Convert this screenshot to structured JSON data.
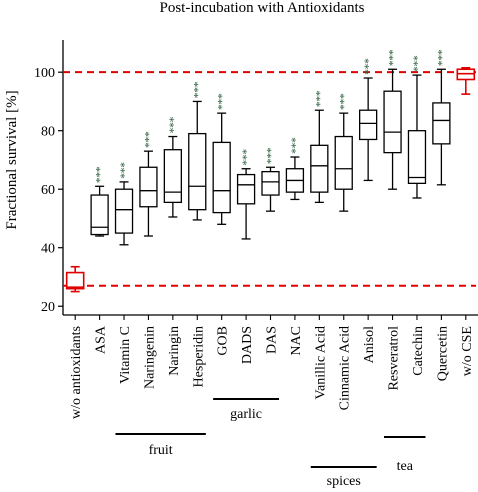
{
  "chart_data": {
    "type": "boxplot",
    "title": "Post-incubation with Antioxidants",
    "ylabel": "Fractional survival [%]",
    "xlabel": "",
    "ylim": [
      17,
      111
    ],
    "yticks": [
      20,
      40,
      60,
      80,
      100
    ],
    "grid": false,
    "reference_lines": [
      {
        "y": 100,
        "color": "#e00000",
        "style": "dashed"
      },
      {
        "y": 27,
        "color": "#e00000",
        "style": "dashed"
      }
    ],
    "categories": [
      "w/o antioxidants",
      "ASA",
      "Vitamin C",
      "Naringenin",
      "Naringin",
      "Hesperidin",
      "GOB",
      "DADS",
      "DAS",
      "NAC",
      "Vanillic Acid",
      "Cinnamic Acid",
      "Anisol",
      "Resveratrol",
      "Catechin",
      "Quercetin",
      "w/o CSE"
    ],
    "boxes": [
      {
        "min": 25,
        "q1": 26,
        "median": 26.5,
        "q3": 31.5,
        "max": 33.5,
        "color": "#e00000",
        "significance": ""
      },
      {
        "min": 44,
        "q1": 44.5,
        "median": 47,
        "q3": 58,
        "max": 61,
        "color": "#000000",
        "significance": "***"
      },
      {
        "min": 41,
        "q1": 45,
        "median": 53,
        "q3": 60,
        "max": 62.5,
        "color": "#000000",
        "significance": "***"
      },
      {
        "min": 44,
        "q1": 54,
        "median": 59.5,
        "q3": 67.5,
        "max": 73,
        "color": "#000000",
        "significance": "***"
      },
      {
        "min": 50.5,
        "q1": 55.5,
        "median": 59,
        "q3": 73.5,
        "max": 78,
        "color": "#000000",
        "significance": "***"
      },
      {
        "min": 49.5,
        "q1": 53,
        "median": 61,
        "q3": 79,
        "max": 90,
        "color": "#000000",
        "significance": "***"
      },
      {
        "min": 48,
        "q1": 52,
        "median": 59.5,
        "q3": 76,
        "max": 86,
        "color": "#000000",
        "significance": "***"
      },
      {
        "min": 43,
        "q1": 55,
        "median": 61.5,
        "q3": 65,
        "max": 67,
        "color": "#000000",
        "significance": "***"
      },
      {
        "min": 52.5,
        "q1": 58,
        "median": 62.5,
        "q3": 66,
        "max": 67.5,
        "color": "#000000",
        "significance": "***"
      },
      {
        "min": 56.5,
        "q1": 59,
        "median": 63,
        "q3": 67,
        "max": 71,
        "color": "#000000",
        "significance": "***"
      },
      {
        "min": 55.5,
        "q1": 59,
        "median": 68,
        "q3": 75,
        "max": 87,
        "color": "#000000",
        "significance": "***"
      },
      {
        "min": 52.5,
        "q1": 60,
        "median": 67,
        "q3": 78,
        "max": 86,
        "color": "#000000",
        "significance": "***"
      },
      {
        "min": 63,
        "q1": 77,
        "median": 82.5,
        "q3": 87,
        "max": 98,
        "color": "#000000",
        "significance": "***"
      },
      {
        "min": 60,
        "q1": 72.5,
        "median": 79.5,
        "q3": 93.5,
        "max": 101,
        "color": "#000000",
        "significance": "***"
      },
      {
        "min": 57,
        "q1": 62,
        "median": 64,
        "q3": 80,
        "max": 99,
        "color": "#000000",
        "significance": "***"
      },
      {
        "min": 61.5,
        "q1": 75.5,
        "median": 83.5,
        "q3": 89.5,
        "max": 101,
        "color": "#000000",
        "significance": "***"
      },
      {
        "min": 92.5,
        "q1": 97.5,
        "median": 99.5,
        "q3": 101,
        "max": 101.5,
        "color": "#e00000",
        "significance": ""
      }
    ],
    "groups": [
      {
        "label": "fruit",
        "from": 2,
        "to": 5
      },
      {
        "label": "garlic",
        "from": 6,
        "to": 8
      },
      {
        "label": "spices",
        "from": 10,
        "to": 12
      },
      {
        "label": "tea",
        "from": 13,
        "to": 14
      }
    ]
  }
}
